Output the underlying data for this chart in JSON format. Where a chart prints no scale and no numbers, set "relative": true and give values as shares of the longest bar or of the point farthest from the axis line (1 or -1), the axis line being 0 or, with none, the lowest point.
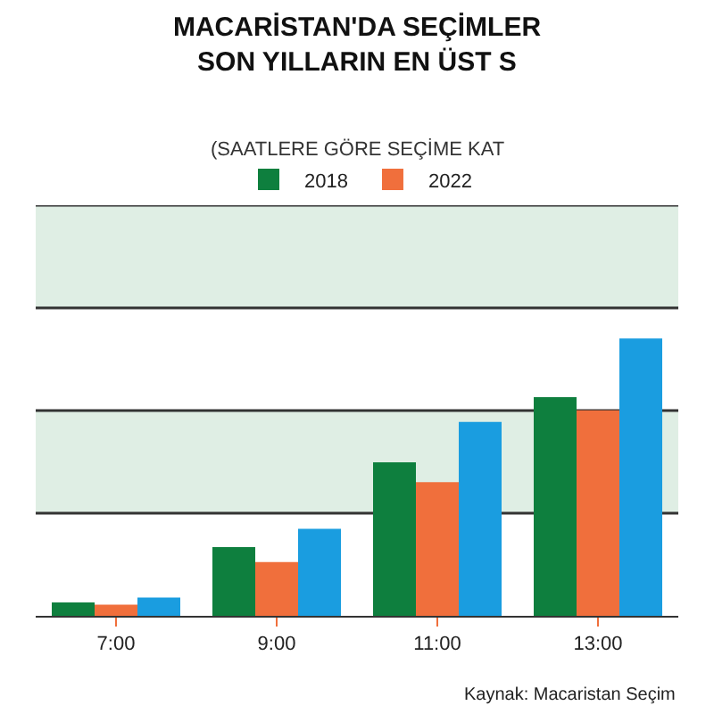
{
  "chart_data": {
    "type": "bar",
    "title": "MACARİSTAN'DA SEÇİMLER\nSON YILLARIN EN ÜST S",
    "subtitle": "(SAATLERE GÖRE SEÇİME KAT",
    "categories": [
      "7:00",
      "9:00",
      "11:00",
      "13:00"
    ],
    "relative": true,
    "series": [
      {
        "name": "2018",
        "color": "#0e7f3e",
        "values": [
          0.048,
          0.248,
          0.553,
          0.788
        ]
      },
      {
        "name": "2022",
        "color": "#f06f3c",
        "values": [
          0.04,
          0.194,
          0.482,
          0.741
        ]
      },
      {
        "color": "#1a9de0",
        "values": [
          0.066,
          0.314,
          0.699,
          1
        ]
      }
    ],
    "bands": [
      {
        "axis": "y",
        "from": 0.37,
        "to": 0.74,
        "color": "#dfeee4"
      },
      {
        "axis": "y",
        "from": 1.11,
        "to": 1.48,
        "color": "#dfeee4"
      }
    ],
    "ref_lines": [
      {
        "axis": "y",
        "value": 0.37,
        "color": "#333333"
      },
      {
        "axis": "y",
        "value": 0.74,
        "color": "#333333"
      },
      {
        "axis": "y",
        "value": 1.11,
        "color": "#333333"
      },
      {
        "axis": "y",
        "value": 1.48,
        "color": "#333333"
      }
    ],
    "legend": "top",
    "annotations": [
      "Kaynak: Macaristan Seçim"
    ]
  }
}
